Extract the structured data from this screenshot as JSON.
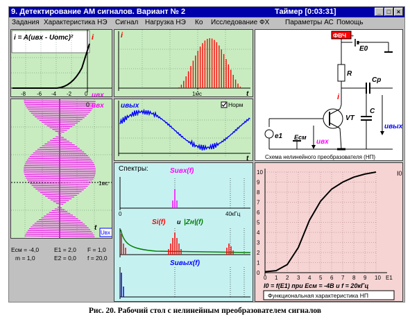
{
  "window": {
    "title": "9. Детектирование АМ сигналов.  Вариант № 2",
    "timer": "Таймер [0:03:31]",
    "buttons": {
      "minimize": "_",
      "maximize": "□",
      "close": "×"
    }
  },
  "menu": [
    "Задания",
    "Характеристика НЭ",
    "Сигнал",
    "Нагрузка НЭ",
    "Ко",
    "Исследование ФХ",
    "Параметры АС",
    "Помощь"
  ],
  "characteristic": {
    "formula": "i = A(uвх - Uотс)²",
    "y_label": "i",
    "x_label": "uвх",
    "ticks": [
      "-8",
      "-6",
      "-4",
      "-2",
      "0"
    ]
  },
  "current_plot": {
    "y_label": "i",
    "x_label": "t",
    "marker": "1мс"
  },
  "input_plot": {
    "y_label": "uвх",
    "x_label": "t",
    "marker": "1мс",
    "badge": "Uвх",
    "zero": "0"
  },
  "output_plot": {
    "y_label": "uвых",
    "x_label": "t",
    "checkbox_label": "Норм",
    "checked": true
  },
  "spectra": {
    "title": "Спектры:",
    "s_in": "Suвх(f)",
    "s_current": "Si(f)",
    "and_text": "и",
    "zn": "|Zн|(f)",
    "s_out": "Suвых(f)",
    "zero": "0",
    "freq_label": "40кГц"
  },
  "schematic": {
    "title": "Схема нелинейного преобразователя (НП)",
    "button": "ФВЧ",
    "labels": {
      "e0": "E0",
      "r": "R",
      "cp": "Cр",
      "c": "C",
      "vt": "VT",
      "i": "i",
      "e1": "e1",
      "ecm": "Eсм",
      "uvx": "uвх",
      "uvyx": "uвых"
    },
    "colors": {
      "button_bg": "#ff0000",
      "label_blue": "#0000ff",
      "current_red": "#ff0000"
    }
  },
  "functional": {
    "y_ticks": [
      "10",
      "9",
      "8",
      "7",
      "6",
      "5",
      "4",
      "3",
      "2",
      "1",
      "0"
    ],
    "x_ticks": [
      "0",
      "1",
      "2",
      "3",
      "4",
      "5",
      "6",
      "7",
      "8",
      "9",
      "10",
      "E1"
    ],
    "label_io": "I0",
    "formula": "I0 = f(E1) при Ecм = -4В и f = 20кГц",
    "caption": "Функциональная характеристика НП",
    "chart_data": {
      "type": "line",
      "x": [
        0,
        1,
        2,
        3,
        4,
        5,
        6,
        7,
        8,
        9,
        10
      ],
      "values": [
        0.1,
        0.2,
        0.8,
        2.5,
        5.2,
        7.1,
        8.3,
        9.0,
        9.5,
        9.8,
        10.0
      ],
      "xlim": [
        0,
        10
      ],
      "ylim": [
        0,
        10
      ]
    }
  },
  "params": {
    "ecm": "Eсм = -4,0",
    "e1": "E1 = 2,0",
    "f": "F = 1,0",
    "m": "m = 1,0",
    "e2": "E2 = 0,0",
    "f2": "f = 20,0"
  },
  "figure_caption": "Рис. 20. Рабочий стол с нелинейным преобразователем сигналов"
}
